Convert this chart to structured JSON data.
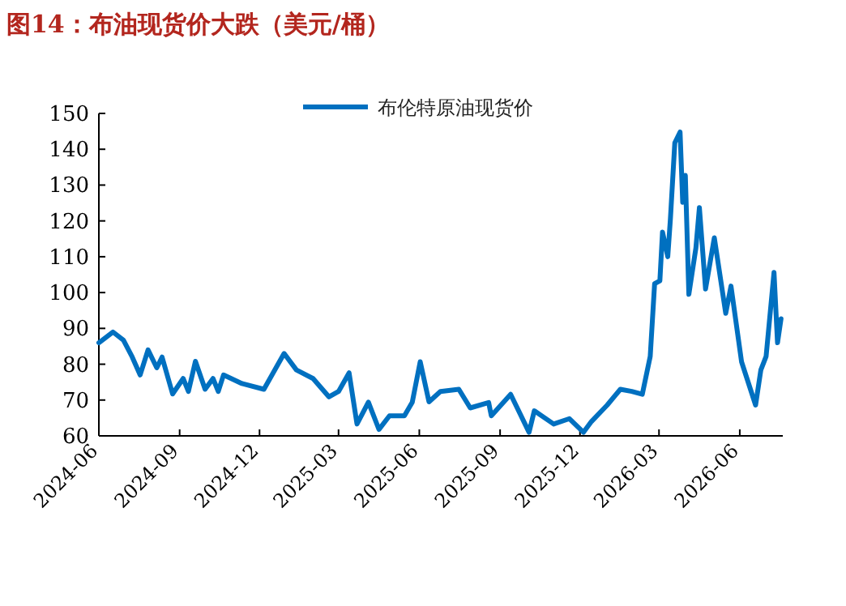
{
  "chart_data": {
    "type": "line",
    "title": "图14：布油现货价大跌（美元/桶）",
    "x": [
      "2024-06-01",
      "2024-06-17",
      "2024-06-29",
      "2024-07-09",
      "2024-07-18",
      "2024-07-27",
      "2024-08-06",
      "2024-08-12",
      "2024-08-24",
      "2024-09-05",
      "2024-09-11",
      "2024-09-19",
      "2024-09-30",
      "2024-10-09",
      "2024-10-15",
      "2024-10-21",
      "2024-11-11",
      "2024-12-06",
      "2024-12-29",
      "2025-01-12",
      "2025-01-31",
      "2025-02-18",
      "2025-03-01",
      "2025-03-13",
      "2025-03-22",
      "2025-04-04",
      "2025-04-16",
      "2025-04-28",
      "2025-05-15",
      "2025-05-24",
      "2025-06-02",
      "2025-06-12",
      "2025-06-25",
      "2025-07-16",
      "2025-07-29",
      "2025-08-19",
      "2025-08-22",
      "2025-09-13",
      "2025-10-04",
      "2025-10-10",
      "2025-11-01",
      "2025-11-19",
      "2025-12-05",
      "2025-12-14",
      "2026-01-01",
      "2026-01-16",
      "2026-01-29",
      "2026-02-10",
      "2026-02-19",
      "2026-02-24",
      "2026-03-02",
      "2026-03-05",
      "2026-03-11",
      "2026-03-14",
      "2026-03-19",
      "2026-03-25",
      "2026-03-28",
      "2026-03-31",
      "2026-04-04",
      "2026-04-12",
      "2026-04-16",
      "2026-04-23",
      "2026-05-03",
      "2026-05-16",
      "2026-05-22",
      "2026-06-03",
      "2026-06-19",
      "2026-06-25",
      "2026-07-01",
      "2026-07-10",
      "2026-07-14",
      "2026-07-18"
    ],
    "series": [
      {
        "name": "布伦特原油现货价",
        "color": "#0070c0",
        "values": [
          86,
          89,
          86.7,
          82,
          77,
          84,
          79,
          82,
          71.7,
          76,
          72.4,
          80.8,
          73,
          76,
          72.4,
          77,
          74.6,
          73,
          83,
          78.4,
          76,
          70.9,
          72.4,
          77.6,
          63.3,
          69.4,
          61.8,
          65.6,
          65.6,
          69.4,
          80.7,
          69.5,
          72.4,
          73,
          67.8,
          69.3,
          65.6,
          71.6,
          61,
          67,
          63.3,
          64.8,
          61,
          64,
          68.6,
          73,
          72.4,
          71.6,
          82.2,
          102.5,
          103.3,
          116.9,
          110,
          120.6,
          141.8,
          144.8,
          125.2,
          132.7,
          99.5,
          112.4,
          123.7,
          101,
          115.3,
          94.2,
          101.8,
          80.7,
          68.6,
          78.4,
          82.2,
          105.6,
          86,
          92.7
        ]
      }
    ],
    "xlim": [
      "2024-06-01",
      "2026-07-20"
    ],
    "xticks": [
      "2024-06",
      "2024-09",
      "2024-12",
      "2025-03",
      "2025-06",
      "2025-09",
      "2025-12",
      "2026-03",
      "2026-06"
    ],
    "ylim": [
      60,
      150
    ],
    "yticks": [
      60,
      70,
      80,
      90,
      100,
      110,
      120,
      130,
      140,
      150
    ],
    "legend": "top"
  }
}
